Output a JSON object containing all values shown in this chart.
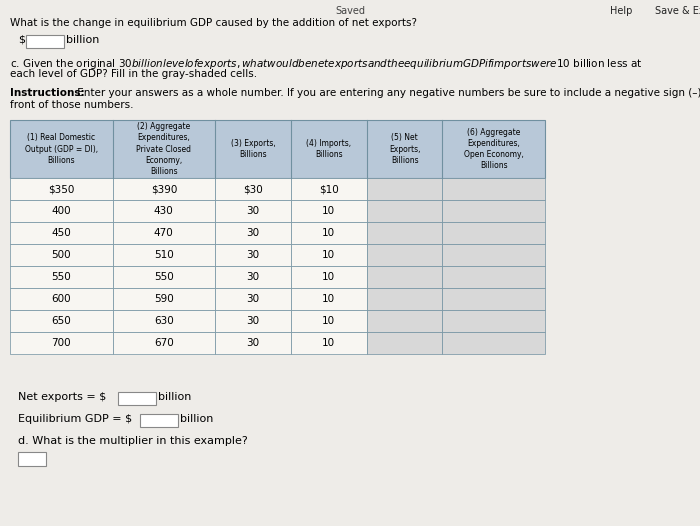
{
  "title_top": "Saved",
  "top_text": "What is the change in equilibrium GDP caused by the addition of net exports?",
  "section_c_line1": "c. Given the original $30 billion level of exports, what would be net exports and the equilibrium GDP if imports were $10 billion less at",
  "section_c_line2": "each level of GDP? Fill in the gray-shaded cells.",
  "instructions_bold": "Instructions:",
  "instructions_rest": " Enter your answers as a whole number. If you are entering any negative numbers be sure to include a negative sign (–) in",
  "instructions_line2": "front of those numbers.",
  "col_headers": [
    "(1) Real Domestic\nOutput (GDP = DI),\nBillions",
    "(2) Aggregate\nExpenditures,\nPrivate Closed\nEconomy,\nBillions",
    "(3) Exports,\nBillions",
    "(4) Imports,\nBillions",
    "(5) Net\nExports,\nBillions",
    "(6) Aggregate\nExpenditures,\nOpen Economy,\nBillions"
  ],
  "col1": [
    "$350",
    "400",
    "450",
    "500",
    "550",
    "600",
    "650",
    "700"
  ],
  "col2": [
    "$390",
    "430",
    "470",
    "510",
    "550",
    "590",
    "630",
    "670"
  ],
  "col3": [
    "$30",
    "30",
    "30",
    "30",
    "30",
    "30",
    "30",
    "30"
  ],
  "col4": [
    "$10",
    "10",
    "10",
    "10",
    "10",
    "10",
    "10",
    "10"
  ],
  "net_exports_label": "Net exports = $",
  "net_exports_unit": "billion",
  "equilibrium_gdp_label": "Equilibrium GDP = $",
  "equilibrium_gdp_unit": "billion",
  "multiplier_label": "d. What is the multiplier in this example?",
  "bg_color": "#eeece8",
  "header_bg": "#b8c8d8",
  "gray_cell_bg": "#d8d8d8",
  "white_cell_bg": "#f8f6f2",
  "table_border": "#7090a0",
  "help_text": "Help",
  "save_exit_text": "Save & Exit"
}
